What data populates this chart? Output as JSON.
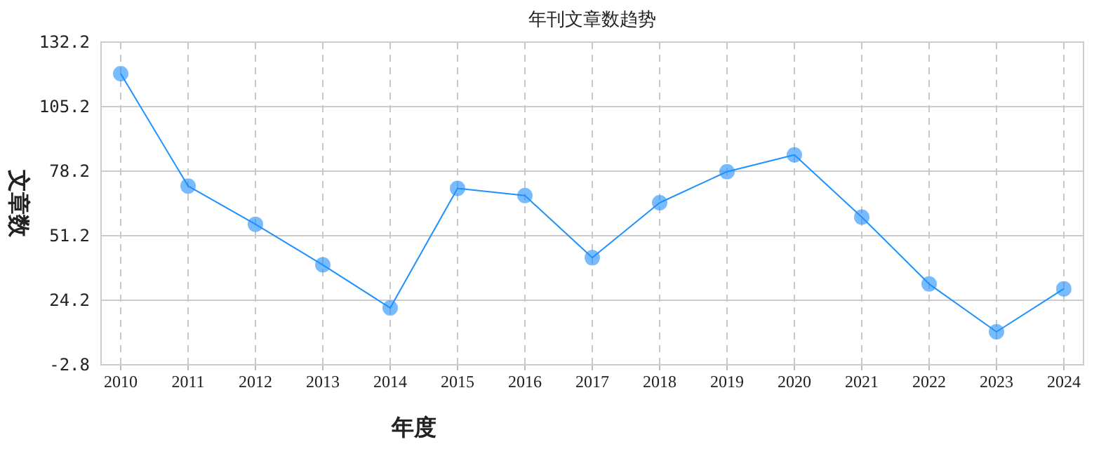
{
  "chart_data": {
    "type": "line",
    "title": "年刊文章数趋势",
    "xlabel": "年度",
    "ylabel": "文章数",
    "categories": [
      "2010",
      "2011",
      "2012",
      "2013",
      "2014",
      "2015",
      "2016",
      "2017",
      "2018",
      "2019",
      "2020",
      "2021",
      "2022",
      "2023",
      "2024"
    ],
    "series": [
      {
        "color": "#1e90ff",
        "values": [
          119,
          72,
          56,
          39,
          21,
          71,
          68,
          42,
          65,
          78,
          85,
          59,
          31,
          11,
          29
        ]
      }
    ],
    "ylim": [
      -2.8,
      132.2
    ],
    "yticks": [
      -2.8,
      24.2,
      51.2,
      78.2,
      105.2,
      132.2
    ],
    "grid": true,
    "marker": "circle"
  }
}
